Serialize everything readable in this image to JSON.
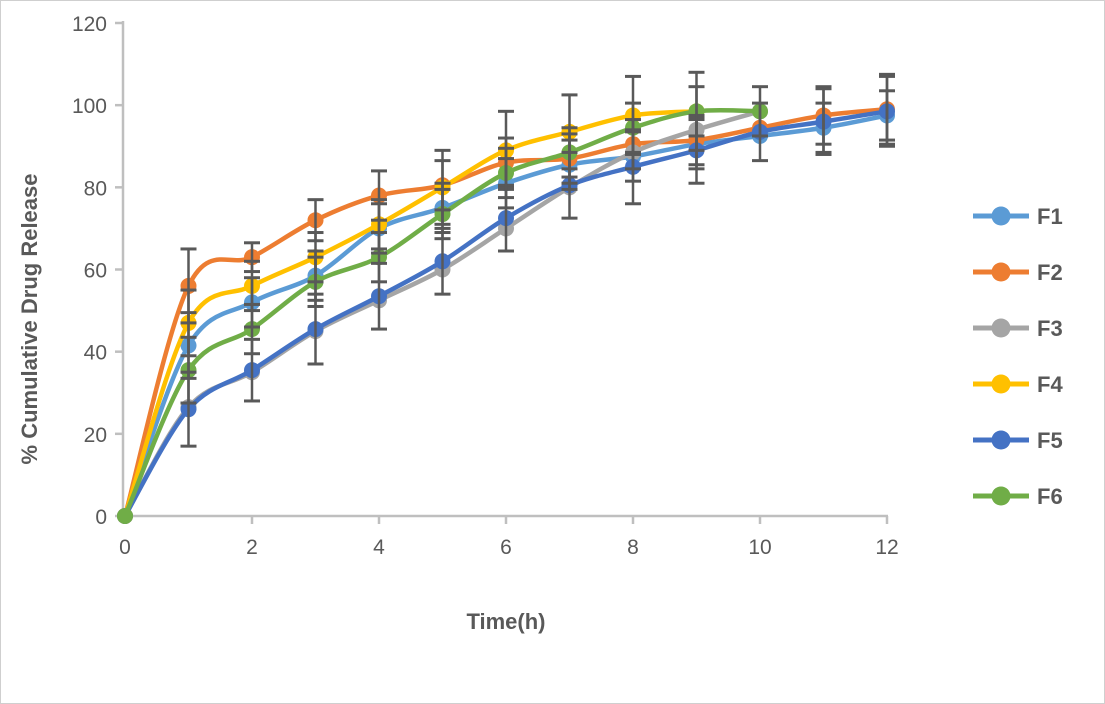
{
  "chart_data": {
    "type": "line",
    "title": "",
    "xlabel": "Time(h)",
    "ylabel": "% Cumulative Drug Release",
    "xlim": [
      0,
      12
    ],
    "ylim": [
      0,
      120
    ],
    "x_ticks": [
      0,
      2,
      4,
      6,
      8,
      10,
      12
    ],
    "y_ticks": [
      0,
      20,
      40,
      60,
      80,
      100,
      120
    ],
    "grid": false,
    "legend_position": "right",
    "marker": "circle",
    "axis_color": "#BFBFBF",
    "error_bar_color": "#595959",
    "x": [
      0,
      1,
      2,
      3,
      4,
      5,
      6,
      7,
      8,
      9,
      10,
      11,
      12
    ],
    "series": [
      {
        "name": "F1",
        "color": "#5B9BD5",
        "values": [
          0,
          41.5,
          52,
          58.5,
          70,
          75,
          81,
          85.5,
          87.5,
          90.5,
          92.5,
          94.5,
          97.5
        ],
        "err": [
          null,
          8,
          6,
          6,
          6,
          6,
          6,
          6,
          6,
          6,
          null,
          6,
          6
        ]
      },
      {
        "name": "F2",
        "color": "#ED7D31",
        "values": [
          0,
          56,
          63,
          72,
          78,
          80.5,
          86,
          87,
          90.5,
          91.5,
          94.5,
          97.5,
          99
        ],
        "err": [
          null,
          9,
          3.5,
          5,
          6,
          6,
          6,
          6,
          6,
          6,
          null,
          7,
          8.5
        ]
      },
      {
        "name": "F3",
        "color": "#A5A5A5",
        "values": [
          0,
          26.5,
          35,
          45,
          52.5,
          60,
          70,
          80,
          88.5,
          94,
          98.5
        ],
        "err": [
          null,
          null,
          null,
          null,
          null,
          null,
          null,
          null,
          null,
          null,
          null
        ]
      },
      {
        "name": "F4",
        "color": "#FFC000",
        "values": [
          0,
          47,
          56,
          63,
          71,
          80,
          89,
          93.5,
          97.5,
          98.5
        ],
        "err": [
          null,
          8,
          6,
          6,
          6,
          9,
          9.5,
          9,
          9.5,
          6
        ]
      },
      {
        "name": "F5",
        "color": "#4472C4",
        "values": [
          0,
          26,
          35.5,
          45.5,
          53.5,
          62,
          72.5,
          80.5,
          85,
          89,
          93.5,
          96,
          98.5
        ],
        "err": [
          null,
          9,
          7.5,
          8.5,
          8,
          8,
          8,
          8,
          9,
          8,
          7,
          8,
          8.5
        ]
      },
      {
        "name": "F6",
        "color": "#70AD47",
        "values": [
          0,
          35.5,
          45.5,
          57,
          63,
          73.5,
          83.5,
          88.5,
          94.5,
          98.5,
          98.5
        ],
        "err": [
          null,
          8,
          6,
          6,
          6,
          6,
          6,
          6,
          6,
          9.5,
          6
        ]
      }
    ]
  }
}
